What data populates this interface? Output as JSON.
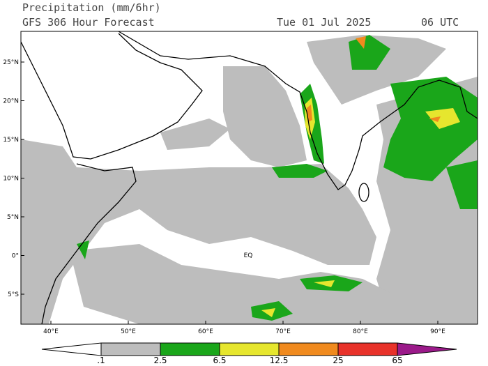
{
  "header": {
    "title": "Precipitation (mm/6hr)",
    "subtitle": "GFS 306 Hour Forecast",
    "date": "Tue 01 Jul 2025",
    "time": "06 UTC"
  },
  "map": {
    "lat_ticks": [
      "25°N",
      "20°N",
      "15°N",
      "10°N",
      "5°N",
      "0°",
      "5°S"
    ],
    "lon_ticks": [
      "40°E",
      "50°E",
      "60°E",
      "70°E",
      "80°E",
      "90°E"
    ],
    "annotation": "EQ"
  },
  "legend": {
    "levels": [
      ".1",
      "2.5",
      "6.5",
      "12.5",
      "25",
      "65"
    ]
  }
}
